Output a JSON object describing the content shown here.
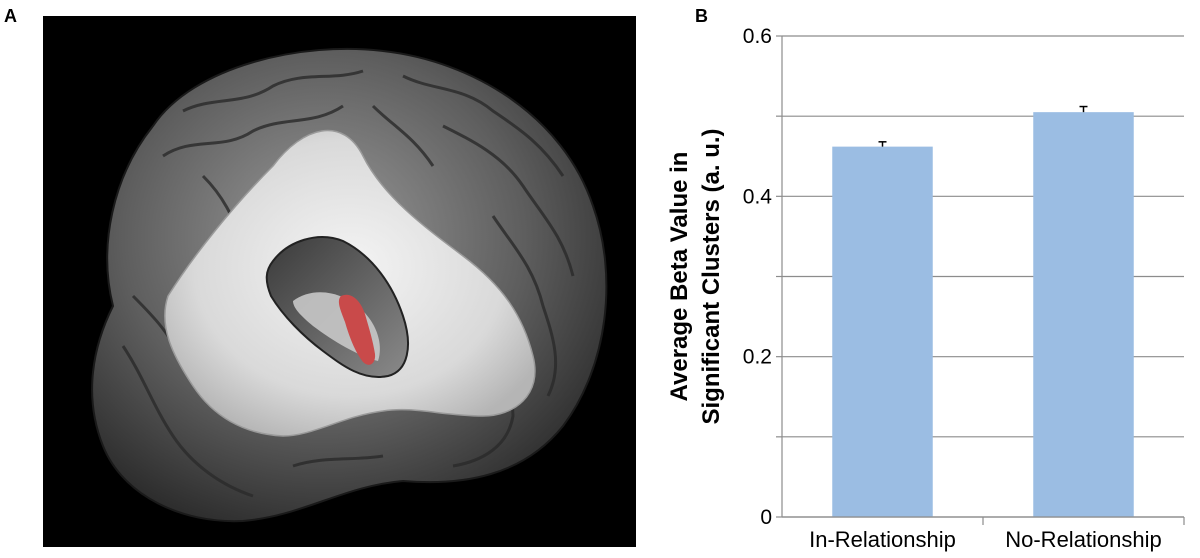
{
  "panels": {
    "a_label": "A",
    "b_label": "B"
  },
  "brain_image": {
    "background_color": "#000000",
    "highlight_color": "#c94a4a"
  },
  "chart_data": {
    "type": "bar",
    "categories": [
      "In-Relationship",
      "No-Relationship"
    ],
    "values": [
      0.462,
      0.505
    ],
    "errors": [
      0.006,
      0.007
    ],
    "title": "",
    "xlabel": "",
    "ylabel_lines": [
      "Average Beta Value in",
      "Significant Clusters (a. u.)"
    ],
    "ylim": [
      0,
      0.6
    ],
    "yticks": [
      0,
      0.1,
      0.2,
      0.3,
      0.4,
      0.5,
      0.6
    ],
    "ytick_labels": [
      "0",
      "",
      "0.2",
      "",
      "0.4",
      "",
      "0.6"
    ],
    "grid": true,
    "bar_color": "#9bbde3"
  }
}
